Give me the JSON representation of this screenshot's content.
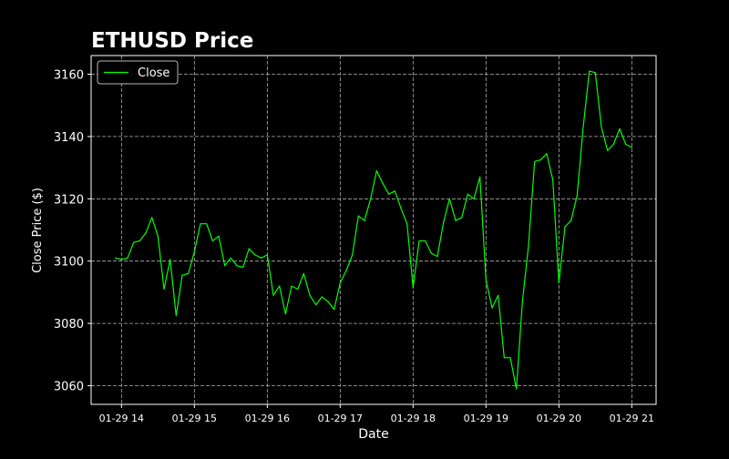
{
  "chart_data": {
    "type": "line",
    "title": "ETHUSD Price",
    "xlabel": "Date",
    "ylabel": "Close Price ($)",
    "x_ticks": [
      "01-29 14",
      "01-29 15",
      "01-29 16",
      "01-29 17",
      "01-29 18",
      "01-29 19",
      "01-29 20",
      "01-29 21"
    ],
    "y_ticks": [
      3060,
      3080,
      3100,
      3120,
      3140,
      3160
    ],
    "xlim": [
      "01-29 13:35",
      "01-29 21:20"
    ],
    "ylim": [
      3054,
      3166
    ],
    "grid": true,
    "legend": {
      "position": "top-left",
      "entries": [
        "Close"
      ]
    },
    "colors": {
      "background": "#000000",
      "line": "#00ff00",
      "grid": "#b0b0b0",
      "text": "#ffffff"
    },
    "series": [
      {
        "name": "Close",
        "x": [
          "01-29 13:55",
          "01-29 14:00",
          "01-29 14:05",
          "01-29 14:10",
          "01-29 14:15",
          "01-29 14:20",
          "01-29 14:25",
          "01-29 14:30",
          "01-29 14:35",
          "01-29 14:40",
          "01-29 14:45",
          "01-29 14:50",
          "01-29 14:55",
          "01-29 15:00",
          "01-29 15:05",
          "01-29 15:10",
          "01-29 15:15",
          "01-29 15:20",
          "01-29 15:25",
          "01-29 15:30",
          "01-29 15:35",
          "01-29 15:40",
          "01-29 15:45",
          "01-29 15:50",
          "01-29 15:55",
          "01-29 16:00",
          "01-29 16:05",
          "01-29 16:10",
          "01-29 16:15",
          "01-29 16:20",
          "01-29 16:25",
          "01-29 16:30",
          "01-29 16:35",
          "01-29 16:40",
          "01-29 16:45",
          "01-29 16:50",
          "01-29 16:55",
          "01-29 17:00",
          "01-29 17:05",
          "01-29 17:10",
          "01-29 17:15",
          "01-29 17:20",
          "01-29 17:25",
          "01-29 17:30",
          "01-29 17:35",
          "01-29 17:40",
          "01-29 17:45",
          "01-29 17:50",
          "01-29 17:55",
          "01-29 18:00",
          "01-29 18:05",
          "01-29 18:10",
          "01-29 18:15",
          "01-29 18:20",
          "01-29 18:25",
          "01-29 18:30",
          "01-29 18:35",
          "01-29 18:40",
          "01-29 18:45",
          "01-29 18:50",
          "01-29 18:55",
          "01-29 19:00",
          "01-29 19:05",
          "01-29 19:10",
          "01-29 19:15",
          "01-29 19:20",
          "01-29 19:25",
          "01-29 19:30",
          "01-29 19:35",
          "01-29 19:40",
          "01-29 19:45",
          "01-29 19:50",
          "01-29 19:55",
          "01-29 20:00",
          "01-29 20:05",
          "01-29 20:10",
          "01-29 20:15",
          "01-29 20:20",
          "01-29 20:25",
          "01-29 20:30",
          "01-29 20:35",
          "01-29 20:40",
          "01-29 20:45",
          "01-29 20:50",
          "01-29 20:55",
          "01-29 21:00"
        ],
        "y": [
          3101,
          3100.5,
          3101,
          3106,
          3106.5,
          3109,
          3114,
          3108,
          3091,
          3100.5,
          3082.5,
          3095.5,
          3096,
          3103,
          3112,
          3112,
          3106.5,
          3108,
          3098.5,
          3101,
          3098.5,
          3098,
          3104,
          3102,
          3101,
          3102,
          3089,
          3092,
          3083,
          3092,
          3091,
          3096,
          3089,
          3086,
          3088.5,
          3087,
          3084.5,
          3093,
          3097,
          3102,
          3114.5,
          3113,
          3120,
          3129,
          3125,
          3121.5,
          3122.5,
          3117,
          3112,
          3091.5,
          3106.5,
          3106.5,
          3102.5,
          3101.5,
          3112.5,
          3120,
          3113,
          3114,
          3121.5,
          3120,
          3127,
          3094,
          3085,
          3089,
          3069,
          3069,
          3059,
          3087,
          3105,
          3132,
          3132.5,
          3134.5,
          3126,
          3093,
          3111,
          3113,
          3121,
          3143,
          3161,
          3160.5,
          3143,
          3135.5,
          3137.5,
          3142.5,
          3137.5,
          3136.5
        ]
      }
    ]
  }
}
